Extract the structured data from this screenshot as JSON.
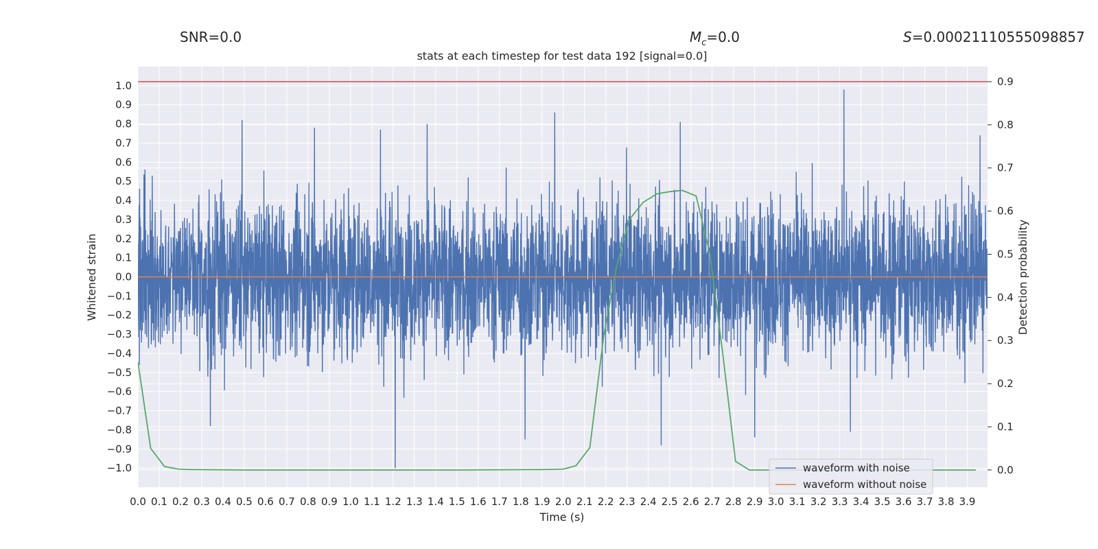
{
  "header": {
    "snr": "SNR=0.0",
    "mc_label": "M",
    "mc_sub": "c",
    "mc_value": "=0.0",
    "s_label": "S",
    "s_value": "=0.00021110555098857"
  },
  "chart_data": {
    "type": "line",
    "title": "stats at each timestep for test data 192 [signal=0.0]",
    "xlabel": "Time (s)",
    "ylabel": "Whitened strain",
    "y2label": "Detection probability",
    "xlim": [
      0.0,
      3.995
    ],
    "ylim": [
      -1.1,
      1.1
    ],
    "y2lim": [
      -0.04,
      0.935
    ],
    "x_ticks": [
      "0.0",
      "0.1",
      "0.2",
      "0.3",
      "0.4",
      "0.5",
      "0.6",
      "0.7",
      "0.8",
      "0.9",
      "1.0",
      "1.1",
      "1.2",
      "1.3",
      "1.4",
      "1.5",
      "1.6",
      "1.7",
      "1.8",
      "1.9",
      "2.0",
      "2.1",
      "2.2",
      "2.3",
      "2.4",
      "2.5",
      "2.6",
      "2.7",
      "2.8",
      "2.9",
      "3.0",
      "3.1",
      "3.2",
      "3.3",
      "3.4",
      "3.5",
      "3.6",
      "3.7",
      "3.8",
      "3.9"
    ],
    "y_ticks": [
      "−1.0",
      "−0.9",
      "−0.8",
      "−0.7",
      "−0.6",
      "−0.5",
      "−0.4",
      "−0.3",
      "−0.2",
      "−0.1",
      "0.0",
      "0.1",
      "0.2",
      "0.3",
      "0.4",
      "0.5",
      "0.6",
      "0.7",
      "0.8",
      "0.9",
      "1.0"
    ],
    "y2_ticks": [
      "0.0",
      "0.1",
      "0.2",
      "0.3",
      "0.4",
      "0.5",
      "0.6",
      "0.7",
      "0.8",
      "0.9"
    ],
    "grid": true,
    "legend_position": "lower-right",
    "series": [
      {
        "name": "waveform with noise",
        "color": "#4c72b0",
        "axis": "left",
        "description": "dense noisy whitened strain, roughly within -0.6..0.6 with spikes",
        "notable_extremes": [
          {
            "x": 0.49,
            "y": 0.82
          },
          {
            "x": 0.83,
            "y": 0.78
          },
          {
            "x": 1.14,
            "y": 0.77
          },
          {
            "x": 1.36,
            "y": 0.8
          },
          {
            "x": 1.96,
            "y": 0.86
          },
          {
            "x": 2.55,
            "y": 0.81
          },
          {
            "x": 3.32,
            "y": 0.98
          },
          {
            "x": 3.96,
            "y": 0.74
          },
          {
            "x": 1.21,
            "y": -1.0
          },
          {
            "x": 2.46,
            "y": -0.88
          },
          {
            "x": 2.9,
            "y": -0.84
          },
          {
            "x": 1.82,
            "y": -0.85
          },
          {
            "x": 0.34,
            "y": -0.78
          },
          {
            "x": 3.35,
            "y": -0.81
          }
        ]
      },
      {
        "name": "waveform without noise",
        "color": "#dd8452",
        "axis": "left",
        "x": [
          0.0,
          3.995
        ],
        "y": [
          0.0,
          0.0
        ]
      },
      {
        "name": "",
        "color": "#55a868",
        "axis": "right",
        "x": [
          0.0,
          0.06,
          0.125,
          0.19,
          0.25,
          0.5,
          1.0,
          1.5,
          1.9,
          2.0,
          2.06,
          2.125,
          2.19,
          2.25,
          2.31,
          2.375,
          2.44,
          2.5,
          2.56,
          2.625,
          2.69,
          2.75,
          2.81,
          2.875,
          2.94,
          3.0,
          3.5,
          3.94
        ],
        "y": [
          0.25,
          0.05,
          0.008,
          0.002,
          0.001,
          0.0,
          0.0,
          0.0,
          0.001,
          0.002,
          0.01,
          0.052,
          0.31,
          0.47,
          0.58,
          0.62,
          0.64,
          0.645,
          0.648,
          0.635,
          0.5,
          0.27,
          0.02,
          0.0,
          0.0,
          0.0,
          0.0,
          0.0
        ]
      },
      {
        "name": "",
        "color": "#c44e52",
        "axis": "right",
        "x": [
          0.0,
          3.995
        ],
        "y": [
          0.9,
          0.9
        ]
      }
    ]
  }
}
